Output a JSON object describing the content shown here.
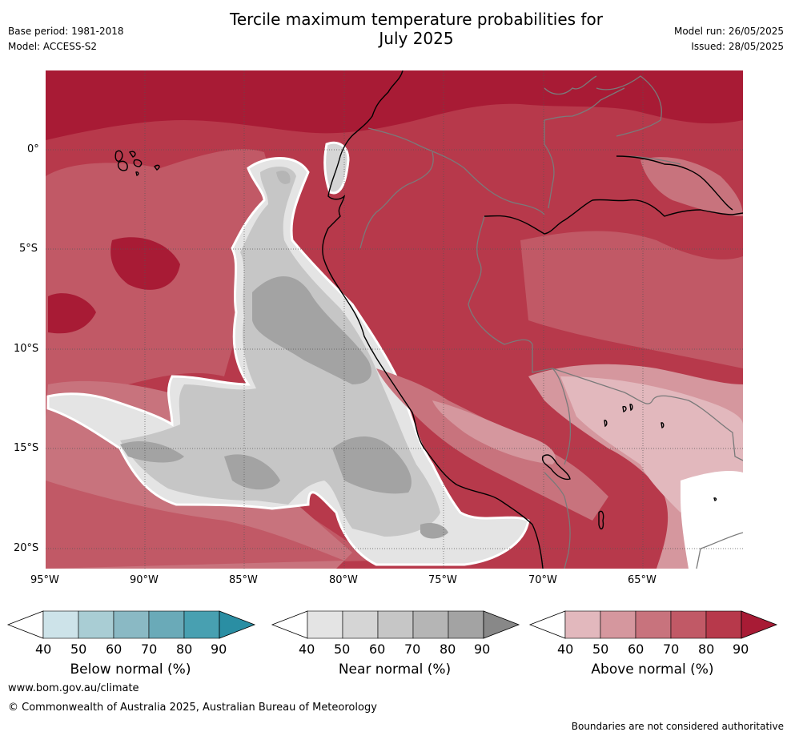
{
  "header": {
    "title_line1": "Tercile maximum temperature probabilities for",
    "title_line2": "July 2025",
    "base_period": "Base period: 1981-2018",
    "model": "Model: ACCESS-S2",
    "model_run": "Model run: 26/05/2025",
    "issued": "Issued: 28/05/2025"
  },
  "map": {
    "lat_labels": [
      "0°",
      "5°S",
      "10°S",
      "15°S",
      "20°S"
    ],
    "lon_labels": [
      "95°W",
      "90°W",
      "85°W",
      "80°W",
      "75°W",
      "70°W",
      "65°W"
    ]
  },
  "colorbars": [
    {
      "caption": "Below normal (%)",
      "ticks": [
        "40",
        "50",
        "60",
        "70",
        "80",
        "90"
      ],
      "colors": [
        "#ffffff",
        "#cde3e9",
        "#a9cdd4",
        "#8ab9c4",
        "#6aaab8",
        "#48a0b1",
        "#2a8ea3"
      ]
    },
    {
      "caption": "Near normal (%)",
      "ticks": [
        "40",
        "50",
        "60",
        "70",
        "80",
        "90"
      ],
      "colors": [
        "#ffffff",
        "#e4e4e4",
        "#d5d5d5",
        "#c6c6c6",
        "#b5b5b5",
        "#a3a3a3",
        "#888888"
      ]
    },
    {
      "caption": "Above normal (%)",
      "ticks": [
        "40",
        "50",
        "60",
        "70",
        "80",
        "90"
      ],
      "colors": [
        "#ffffff",
        "#e2b8bd",
        "#d5979e",
        "#c8737d",
        "#c15966",
        "#b7394b",
        "#a81b35"
      ]
    }
  ],
  "footer": {
    "website": "www.bom.gov.au/climate",
    "copyright": "© Commonwealth of Australia 2025, Australian Bureau of Meteorology",
    "disclaimer": "Boundaries are not considered authoritative"
  }
}
